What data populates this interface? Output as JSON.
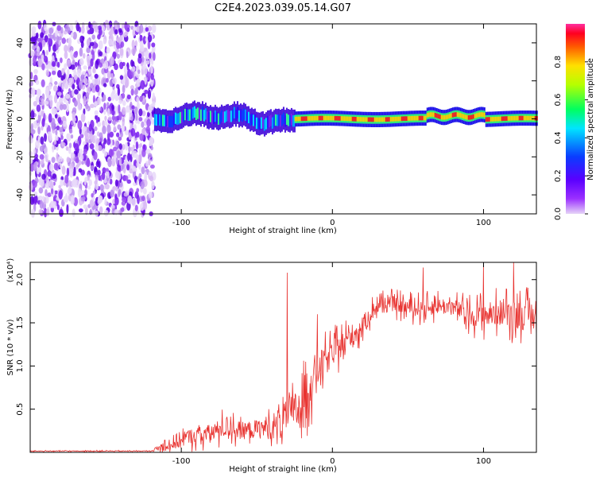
{
  "title": "C2E4.2023.039.05.14.G07",
  "colors": {
    "snr_line": "#e8322f",
    "background": "#ffffff",
    "axis": "#000000"
  },
  "chart_data": [
    {
      "type": "heatmap",
      "xlabel": "Height of straight line (km)",
      "ylabel": "Frequency (Hz)",
      "xlim": [
        -200,
        135
      ],
      "ylim": [
        -50,
        50
      ],
      "x_ticks": [
        -100,
        0,
        100
      ],
      "y_ticks": [
        -40,
        -20,
        0,
        20,
        40
      ],
      "colorbar": {
        "label": "Normalized spectral amplitude",
        "range": [
          0,
          1
        ],
        "ticks": [
          0.0,
          0.2,
          0.4,
          0.6,
          0.8
        ],
        "colormap": "rainbow (purple-blue-cyan-green-yellow-red)"
      },
      "regions": [
        {
          "x_range": [
            -200,
            -118
          ],
          "description": "scattered low-amplitude noise across full frequency range"
        },
        {
          "x_range": [
            -118,
            -25
          ],
          "center_hz": 0,
          "width_hz": 10,
          "amplitude": "0.3-0.6"
        },
        {
          "x_range": [
            -25,
            135
          ],
          "center_hz": 0,
          "width_hz": 5,
          "amplitude": "0.8-1.0"
        }
      ]
    },
    {
      "type": "line",
      "xlabel": "Height of straight line (km)",
      "ylabel": "SNR (10 * v/v)",
      "y_scale_label": "(x10⁴)",
      "xlim": [
        -200,
        135
      ],
      "ylim": [
        0,
        2.2
      ],
      "x_ticks": [
        -100,
        0,
        100
      ],
      "y_ticks": [
        0.5,
        1.0,
        1.5,
        2.0
      ],
      "series_envelope": {
        "x": [
          -200,
          -120,
          -104,
          -95,
          -80,
          -70,
          -60,
          -50,
          -40,
          -30,
          -20,
          -15,
          -10,
          0,
          10,
          20,
          25,
          30,
          40,
          50,
          60,
          70,
          80,
          90,
          100,
          110,
          120,
          135
        ],
        "mean": [
          0.015,
          0.015,
          0.12,
          0.18,
          0.22,
          0.3,
          0.25,
          0.27,
          0.3,
          0.4,
          0.55,
          0.8,
          0.95,
          1.15,
          1.3,
          1.45,
          1.6,
          1.7,
          1.72,
          1.68,
          1.66,
          1.7,
          1.68,
          1.6,
          1.58,
          1.62,
          1.6,
          1.58
        ],
        "spread": [
          0.01,
          0.01,
          0.2,
          0.18,
          0.22,
          0.25,
          0.2,
          0.22,
          0.3,
          0.4,
          0.5,
          0.6,
          0.4,
          0.3,
          0.3,
          0.25,
          0.2,
          0.2,
          0.18,
          0.2,
          0.2,
          0.2,
          0.2,
          0.25,
          0.3,
          0.3,
          0.35,
          0.35
        ]
      },
      "peaks": [
        [
          -30,
          2.08
        ],
        [
          -10,
          1.6
        ],
        [
          60,
          2.14
        ],
        [
          100,
          2.18
        ],
        [
          120,
          2.2
        ]
      ]
    }
  ]
}
